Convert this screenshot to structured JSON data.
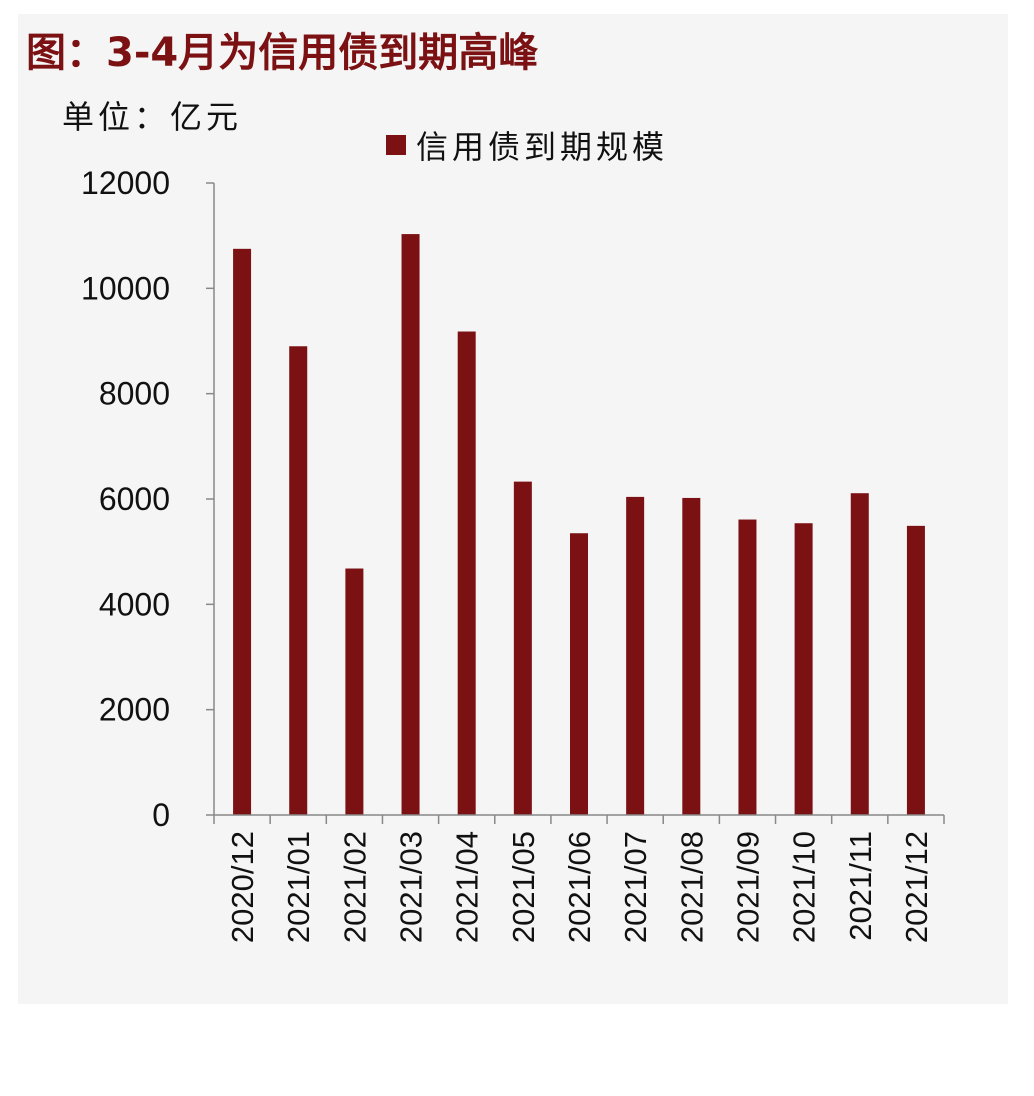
{
  "header": {
    "title": "图：3-4月为信用债到期高峰",
    "unit": "单位：亿元"
  },
  "colors": {
    "bar": "#7b1113",
    "title": "#7b1113"
  },
  "chart_data": {
    "type": "bar",
    "title": "图：3-4月为信用债到期高峰",
    "ylabel": "单位：亿元",
    "ylim": [
      0,
      12000
    ],
    "yticks": [
      0,
      2000,
      4000,
      6000,
      8000,
      10000,
      12000
    ],
    "grid": false,
    "legend": "top-center",
    "categories": [
      "2020/12",
      "2021/01",
      "2021/02",
      "2021/03",
      "2021/04",
      "2021/05",
      "2021/06",
      "2021/07",
      "2021/08",
      "2021/09",
      "2021/10",
      "2021/11",
      "2021/12"
    ],
    "series": [
      {
        "name": "信用债到期规模",
        "values": [
          10750,
          8900,
          4680,
          11030,
          9180,
          6330,
          5350,
          6040,
          6020,
          5610,
          5540,
          6110,
          5490
        ]
      }
    ]
  }
}
